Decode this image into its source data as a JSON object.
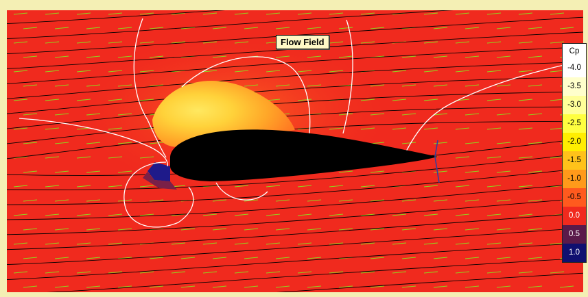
{
  "title": "Flow Field",
  "legend": {
    "header": "Cp",
    "levels": [
      {
        "label": "-4.0",
        "color": "#ffffff",
        "text_color": "#000000"
      },
      {
        "label": "-3.5",
        "color": "#ffffcc",
        "text_color": "#000000"
      },
      {
        "label": "-3.0",
        "color": "#ffff99",
        "text_color": "#000000"
      },
      {
        "label": "-2.5",
        "color": "#ffff40",
        "text_color": "#000000"
      },
      {
        "label": "-2.0",
        "color": "#ffee00",
        "text_color": "#000000"
      },
      {
        "label": "-1.5",
        "color": "#ffc21a",
        "text_color": "#000000"
      },
      {
        "label": "-1.0",
        "color": "#ff9a1a",
        "text_color": "#000000"
      },
      {
        "label": "-0.5",
        "color": "#ff5a1e",
        "text_color": "#000000"
      },
      {
        "label": "0.0",
        "color": "#f12a1e",
        "text_color": "#ffffff"
      },
      {
        "label": "0.5",
        "color": "#5a1a4a",
        "text_color": "#ffffff"
      },
      {
        "label": "1.0",
        "color": "#101070",
        "text_color": "#ffffff"
      }
    ]
  },
  "colors": {
    "background_field": "#f02a1e",
    "airfoil": "#000000",
    "streamline": "#000000",
    "velocity_vector": "#8ed81e",
    "contour": "#ffffff",
    "frame": "#f4efb4"
  }
}
